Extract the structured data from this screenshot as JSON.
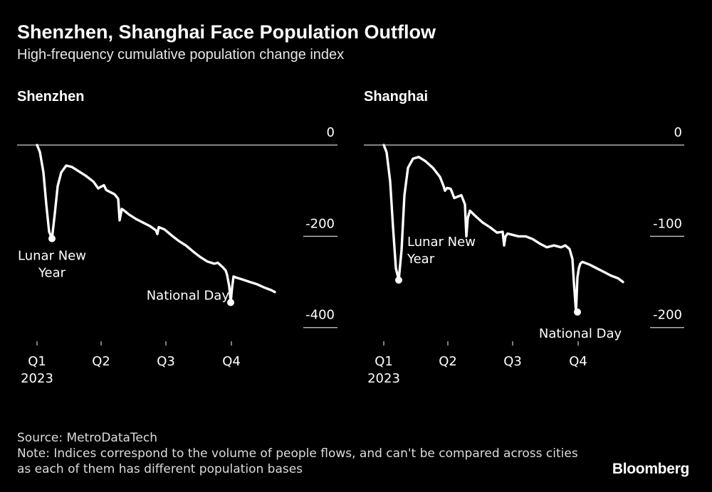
{
  "title": "Shenzhen, Shanghai Face Population Outflow",
  "subtitle": "High-frequency cumulative population change index",
  "source": "Source: MetroDataTech",
  "note": "Note: Indices correspond to the volume of people flows, and can't be compared across cities as each of them has different population bases",
  "brand": "Bloomberg",
  "colors": {
    "background": "#000000",
    "line": "#ffffff",
    "text": "#ffffff"
  },
  "chart_data": [
    {
      "type": "line",
      "title": "Shenzhen",
      "x_unit": "day of year",
      "y_ticks": [
        0,
        -200,
        -400
      ],
      "y_tick_labels": [
        "0",
        "-200",
        "-400"
      ],
      "ylim": [
        -430,
        0
      ],
      "x_ticks": [
        1,
        91,
        182,
        274
      ],
      "x_tick_labels": [
        "Q1\n2023",
        "Q2",
        "Q3",
        "Q4"
      ],
      "xlim": [
        1,
        365
      ],
      "annotations": [
        {
          "text": "Lunar New Year",
          "x": 22,
          "y": -205
        },
        {
          "text": "National Day",
          "x": 273,
          "y": -345
        }
      ],
      "series": [
        {
          "name": "Shenzhen",
          "x": [
            1,
            5,
            10,
            14,
            18,
            22,
            26,
            30,
            35,
            42,
            50,
            60,
            70,
            80,
            87,
            90,
            95,
            98,
            100,
            110,
            115,
            117,
            120,
            122,
            130,
            140,
            150,
            160,
            168,
            170,
            172,
            180,
            190,
            200,
            210,
            220,
            230,
            240,
            250,
            255,
            262,
            266,
            268,
            271,
            273,
            275,
            277,
            280,
            290,
            300,
            310,
            320,
            330,
            335
          ],
          "y": [
            0,
            -15,
            -60,
            -130,
            -190,
            -205,
            -150,
            -90,
            -60,
            -45,
            -48,
            -58,
            -68,
            -80,
            -95,
            -92,
            -88,
            -98,
            -100,
            -108,
            -118,
            -165,
            -140,
            -142,
            -152,
            -162,
            -170,
            -178,
            -187,
            -195,
            -180,
            -185,
            -198,
            -210,
            -220,
            -233,
            -245,
            -255,
            -260,
            -258,
            -268,
            -275,
            -285,
            -310,
            -345,
            -312,
            -288,
            -290,
            -295,
            -300,
            -305,
            -312,
            -318,
            -322
          ]
        }
      ]
    },
    {
      "type": "line",
      "title": "Shanghai",
      "x_unit": "day of year",
      "y_ticks": [
        0,
        -100,
        -200
      ],
      "y_tick_labels": [
        "0",
        "-100",
        "-200"
      ],
      "ylim": [
        -215,
        0
      ],
      "x_ticks": [
        1,
        91,
        182,
        274
      ],
      "x_tick_labels": [
        "Q1\n2023",
        "Q2",
        "Q3",
        "Q4"
      ],
      "xlim": [
        1,
        365
      ],
      "annotations": [
        {
          "text": "Lunar New Year",
          "x": 22,
          "y": -148
        },
        {
          "text": "National Day",
          "x": 273,
          "y": -183
        }
      ],
      "series": [
        {
          "name": "Shanghai",
          "x": [
            1,
            5,
            10,
            14,
            18,
            22,
            26,
            30,
            35,
            42,
            50,
            60,
            70,
            80,
            85,
            87,
            90,
            95,
            100,
            110,
            115,
            117,
            119,
            122,
            130,
            140,
            150,
            160,
            168,
            170,
            172,
            175,
            180,
            190,
            200,
            210,
            220,
            230,
            240,
            250,
            256,
            262,
            266,
            268,
            271,
            273,
            275,
            277,
            280,
            290,
            300,
            310,
            320,
            330,
            337
          ],
          "y": [
            0,
            -8,
            -40,
            -90,
            -135,
            -148,
            -115,
            -55,
            -25,
            -15,
            -13,
            -18,
            -25,
            -35,
            -45,
            -50,
            -47,
            -48,
            -58,
            -55,
            -65,
            -100,
            -80,
            -72,
            -78,
            -85,
            -90,
            -96,
            -95,
            -110,
            -100,
            -97,
            -98,
            -100,
            -100,
            -103,
            -108,
            -112,
            -110,
            -112,
            -110,
            -114,
            -125,
            -150,
            -183,
            -145,
            -135,
            -130,
            -128,
            -131,
            -135,
            -139,
            -143,
            -146,
            -150
          ]
        }
      ]
    }
  ]
}
